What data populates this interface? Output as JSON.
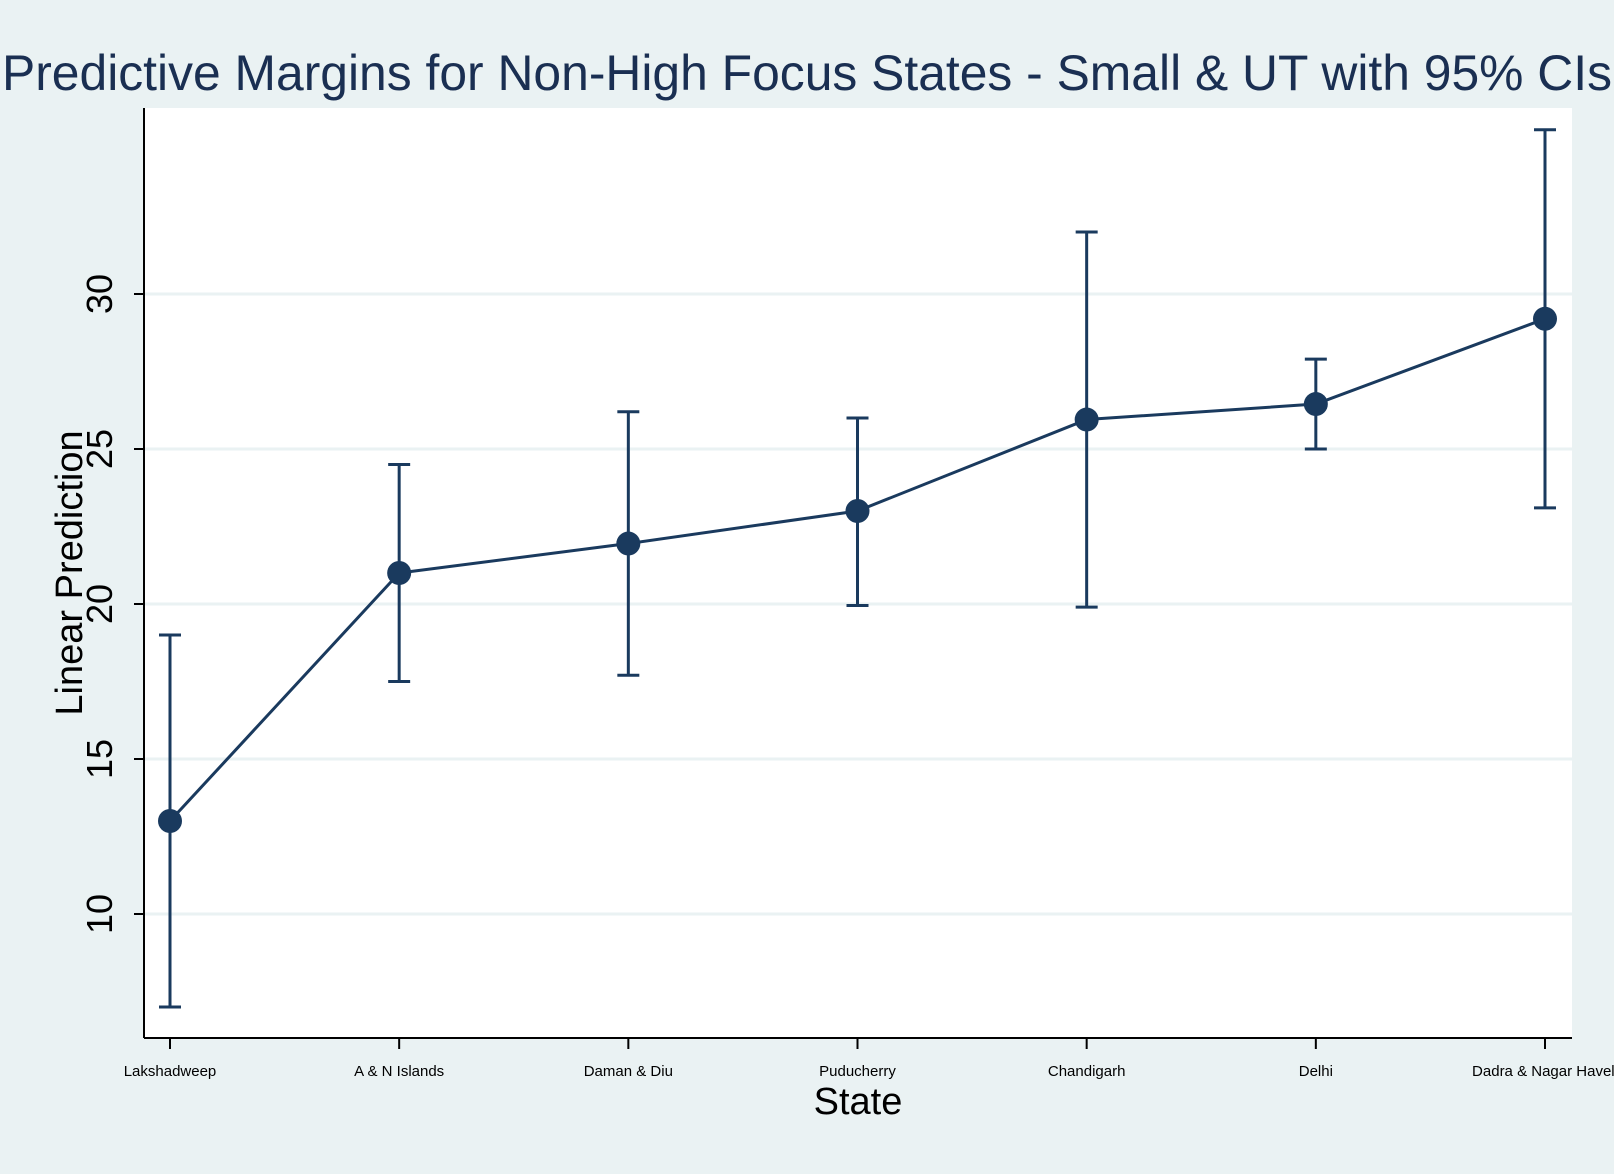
{
  "chart_data": {
    "type": "line",
    "title": "Predictive Margins for Non-High Focus States - Small & UT with 95% CIs",
    "xlabel": "State",
    "ylabel": "Linear Prediction",
    "categories": [
      "Lakshadweep",
      "A & N Islands",
      "Daman & Diu",
      "Puducherry",
      "Chandigarh",
      "Delhi",
      "Dadra & Nagar Haveli"
    ],
    "values": [
      13.0,
      21.0,
      21.95,
      23.0,
      25.95,
      26.45,
      29.2
    ],
    "ci_lower": [
      7.0,
      17.5,
      17.7,
      19.95,
      19.9,
      25.0,
      23.1
    ],
    "ci_upper": [
      19.0,
      24.5,
      26.2,
      26.0,
      32.0,
      27.9,
      35.3
    ],
    "yticks": [
      10,
      15,
      20,
      25,
      30
    ],
    "ylim": [
      6.0,
      36.0
    ],
    "grid": true,
    "legend": "none",
    "colors": {
      "series": "#1a3a5e",
      "background": "#eaf2f3",
      "plot_background": "#ffffff",
      "grid": "#eaf2f3",
      "title": "#1a2f52"
    }
  }
}
